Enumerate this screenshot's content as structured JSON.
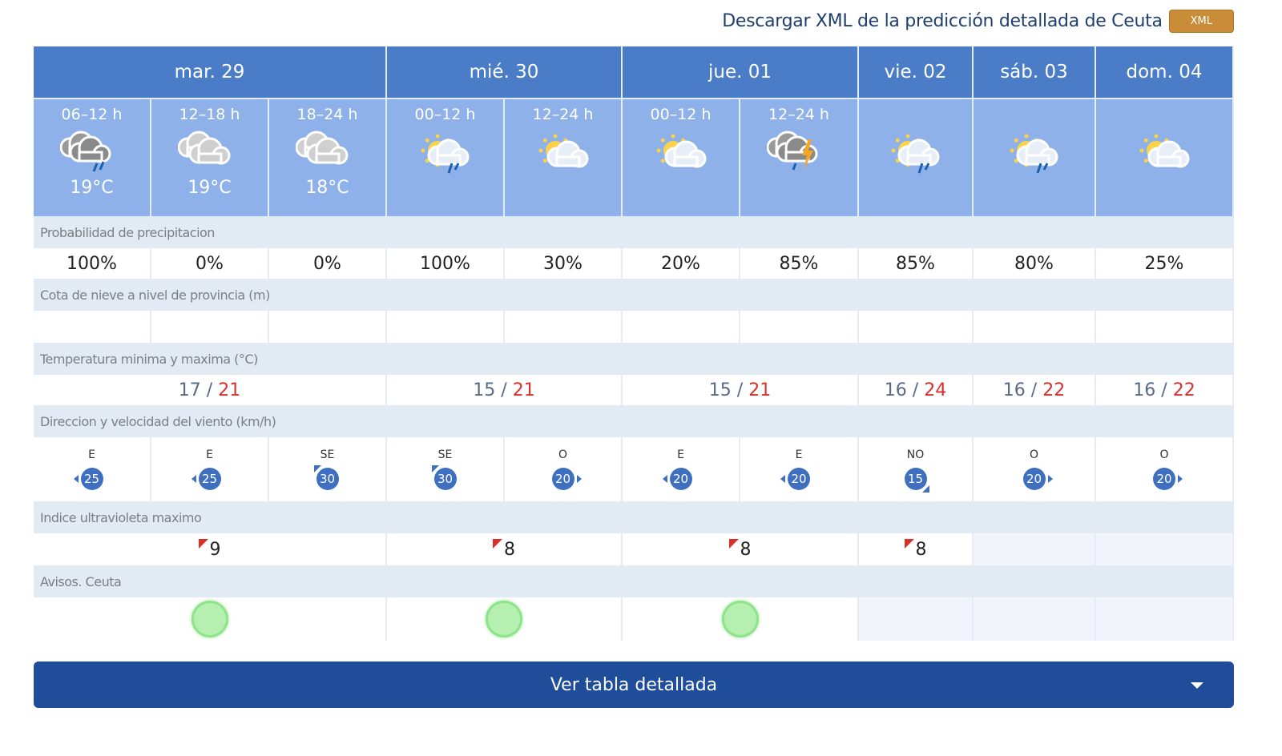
{
  "xml": {
    "link": "Descargar XML de la predicción detallada de Ceuta",
    "button": "XML"
  },
  "days": [
    {
      "label": "mar. 29",
      "span": 3
    },
    {
      "label": "mié. 30",
      "span": 2
    },
    {
      "label": "jue. 01",
      "span": 2
    },
    {
      "label": "vie. 02",
      "span": 1
    },
    {
      "label": "sáb. 03",
      "span": 1
    },
    {
      "label": "dom. 04",
      "span": 1
    }
  ],
  "periods": [
    {
      "time": "06–12 h",
      "icon": "cloud-rain-dark-icon",
      "temp": "19°C"
    },
    {
      "time": "12–18 h",
      "icon": "cloudy-icon",
      "temp": "19°C"
    },
    {
      "time": "18–24 h",
      "icon": "cloudy-icon",
      "temp": "18°C"
    },
    {
      "time": "00–12 h",
      "icon": "sun-cloud-rain-icon",
      "temp": ""
    },
    {
      "time": "12–24 h",
      "icon": "sun-cloud-icon",
      "temp": ""
    },
    {
      "time": "00–12 h",
      "icon": "sun-cloud-icon",
      "temp": ""
    },
    {
      "time": "12–24 h",
      "icon": "storm-icon",
      "temp": ""
    },
    {
      "time": "",
      "icon": "sun-cloud-rain-icon",
      "temp": ""
    },
    {
      "time": "",
      "icon": "sun-cloud-rain-icon",
      "temp": ""
    },
    {
      "time": "",
      "icon": "sun-cloud-icon",
      "temp": ""
    }
  ],
  "labels": {
    "precip": "Probabilidad de precipitacion",
    "snow": "Cota de nieve a nivel de provincia (m)",
    "temp": "Temperatura minima y maxima (°C)",
    "wind": "Direccion y velocidad del viento (km/h)",
    "uv": "Indice ultravioleta maximo",
    "warn": "Avisos. Ceuta"
  },
  "precip": [
    "100%",
    "0%",
    "0%",
    "100%",
    "30%",
    "20%",
    "85%",
    "85%",
    "80%",
    "25%"
  ],
  "temps": [
    {
      "min": "17",
      "max": "21"
    },
    {
      "min": "15",
      "max": "21"
    },
    {
      "min": "15",
      "max": "21"
    },
    {
      "min": "16",
      "max": "24"
    },
    {
      "min": "16",
      "max": "22"
    },
    {
      "min": "16",
      "max": "22"
    }
  ],
  "wind": [
    {
      "dir": "E",
      "speed": "25"
    },
    {
      "dir": "E",
      "speed": "25"
    },
    {
      "dir": "SE",
      "speed": "30"
    },
    {
      "dir": "SE",
      "speed": "30"
    },
    {
      "dir": "O",
      "speed": "20"
    },
    {
      "dir": "E",
      "speed": "20"
    },
    {
      "dir": "E",
      "speed": "20"
    },
    {
      "dir": "NO",
      "speed": "15"
    },
    {
      "dir": "O",
      "speed": "20"
    },
    {
      "dir": "O",
      "speed": "20"
    }
  ],
  "uv": [
    "9",
    "8",
    "8",
    "8",
    "",
    ""
  ],
  "warnings": [
    "green",
    "green",
    "green",
    "",
    "",
    ""
  ],
  "colors": {
    "header": "#4a7cc7",
    "period": "#8db1e8",
    "warning_green": "#8fe38a",
    "button": "#1f4d99"
  },
  "detail_button": "Ver tabla detallada"
}
